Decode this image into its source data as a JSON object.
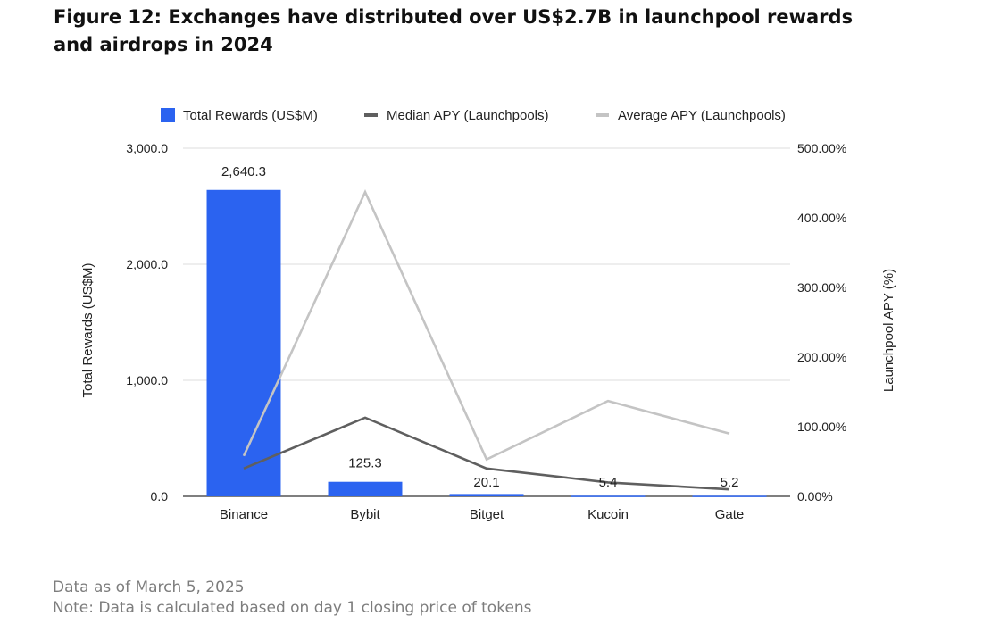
{
  "figure": {
    "title": "Figure 12: Exchanges have distributed over US$2.7B in launchpool rewards and airdrops in 2024",
    "footnotes": [
      "Data as of March 5, 2025",
      "Note: Data is calculated based on day 1 closing price of tokens"
    ]
  },
  "colors": {
    "bar": "#2b63f0",
    "median": "#5f5f5f",
    "average": "#c4c4c4",
    "grid": "#dcdcdc",
    "axis": "#333333"
  },
  "chart_data": {
    "type": "bar",
    "categories": [
      "Binance",
      "Bybit",
      "Bitget",
      "Kucoin",
      "Gate"
    ],
    "series": [
      {
        "name": "Total Rewards (US$M)",
        "type": "bar",
        "axis": "left",
        "values": [
          2640.3,
          125.3,
          20.1,
          5.4,
          5.2
        ],
        "labels": [
          "2,640.3",
          "125.3",
          "20.1",
          "5.4",
          "5.2"
        ]
      },
      {
        "name": "Median APY (Launchpools)",
        "type": "line",
        "axis": "right",
        "values": [
          40,
          113,
          40,
          20,
          10
        ]
      },
      {
        "name": "Average APY (Launchpools)",
        "type": "line",
        "axis": "right",
        "values": [
          58,
          437,
          53,
          137,
          90
        ]
      }
    ],
    "ylabel": "Total Rewards (US$M)",
    "y2label": "Launchpool APY (%)",
    "ylim": [
      0,
      3000
    ],
    "y2lim": [
      0,
      500
    ],
    "yticks": [
      "0.0",
      "1,000.0",
      "2,000.0",
      "3,000.0"
    ],
    "y2ticks": [
      "0.00%",
      "100.00%",
      "200.00%",
      "300.00%",
      "400.00%",
      "500.00%"
    ],
    "legend": "top"
  }
}
